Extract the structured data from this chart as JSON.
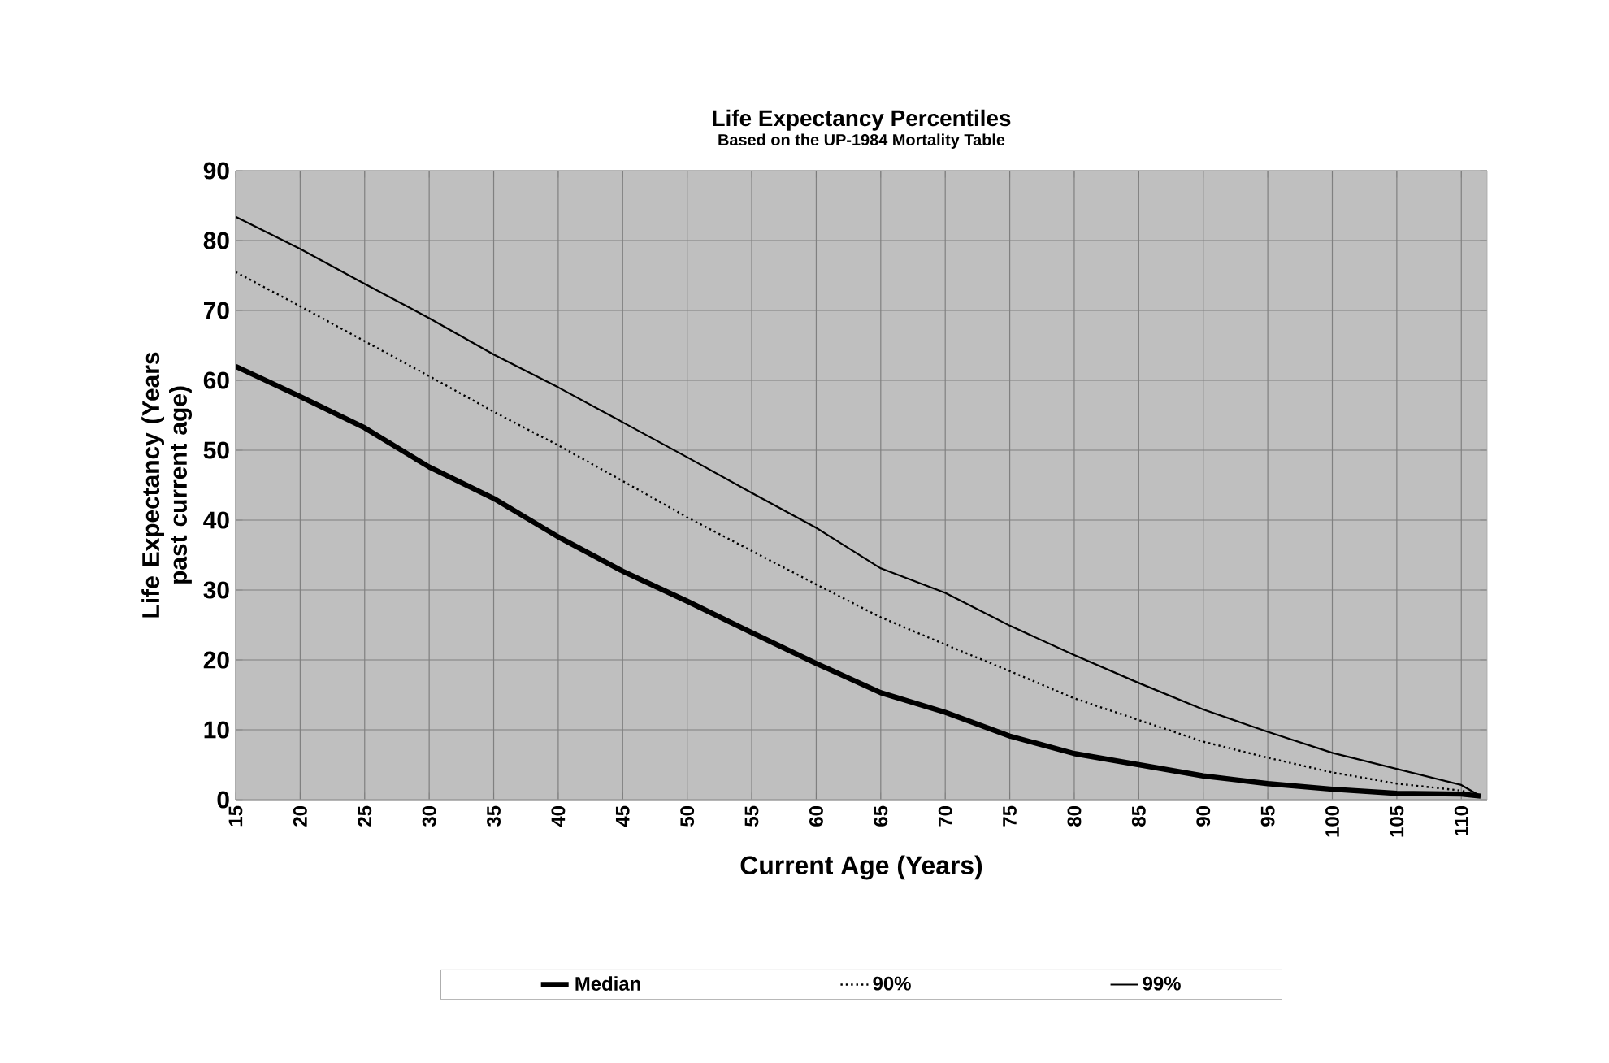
{
  "chart_data": {
    "type": "line",
    "title": "Life Expectancy Percentiles",
    "subtitle": "Based on the UP-1984 Mortality Table",
    "xlabel": "Current Age (Years)",
    "ylabel": "Life Expectancy (Years past current age)",
    "x": [
      15,
      20,
      25,
      30,
      35,
      40,
      45,
      50,
      55,
      60,
      65,
      70,
      75,
      80,
      85,
      90,
      95,
      100,
      105,
      110,
      111.5
    ],
    "series": [
      {
        "name": "Median",
        "color": "#000000",
        "line_style": "solid",
        "values": [
          62,
          57.7,
          53.2,
          47.6,
          43.1,
          37.6,
          32.7,
          28.4,
          23.9,
          19.5,
          15.3,
          12.5,
          9.1,
          6.6,
          5.0,
          3.4,
          2.3,
          1.5,
          0.9,
          0.8,
          0.5
        ]
      },
      {
        "name": "90%",
        "color": "#000000",
        "line_style": "dotted",
        "values": [
          75.5,
          70.6,
          65.6,
          60.6,
          55.5,
          50.7,
          45.6,
          40.4,
          35.6,
          30.8,
          26.1,
          22.2,
          18.4,
          14.5,
          11.4,
          8.3,
          6.0,
          3.9,
          2.3,
          1.3,
          0.5
        ]
      },
      {
        "name": "99%",
        "color": "#000000",
        "line_style": "solid",
        "values": [
          83.4,
          78.8,
          73.8,
          68.9,
          63.7,
          59.0,
          54.0,
          49.0,
          43.9,
          38.9,
          33.1,
          29.6,
          24.9,
          20.7,
          16.7,
          12.9,
          9.7,
          6.7,
          4.4,
          2.1,
          0.5
        ]
      }
    ],
    "xlim": [
      15,
      112
    ],
    "ylim": [
      0,
      90
    ],
    "xticks": [
      15,
      20,
      25,
      30,
      35,
      40,
      45,
      50,
      55,
      60,
      65,
      70,
      75,
      80,
      85,
      90,
      95,
      100,
      105,
      110
    ],
    "yticks": [
      0,
      10,
      20,
      30,
      40,
      50,
      60,
      70,
      80,
      90
    ],
    "grid": true,
    "legend": "bottom"
  }
}
